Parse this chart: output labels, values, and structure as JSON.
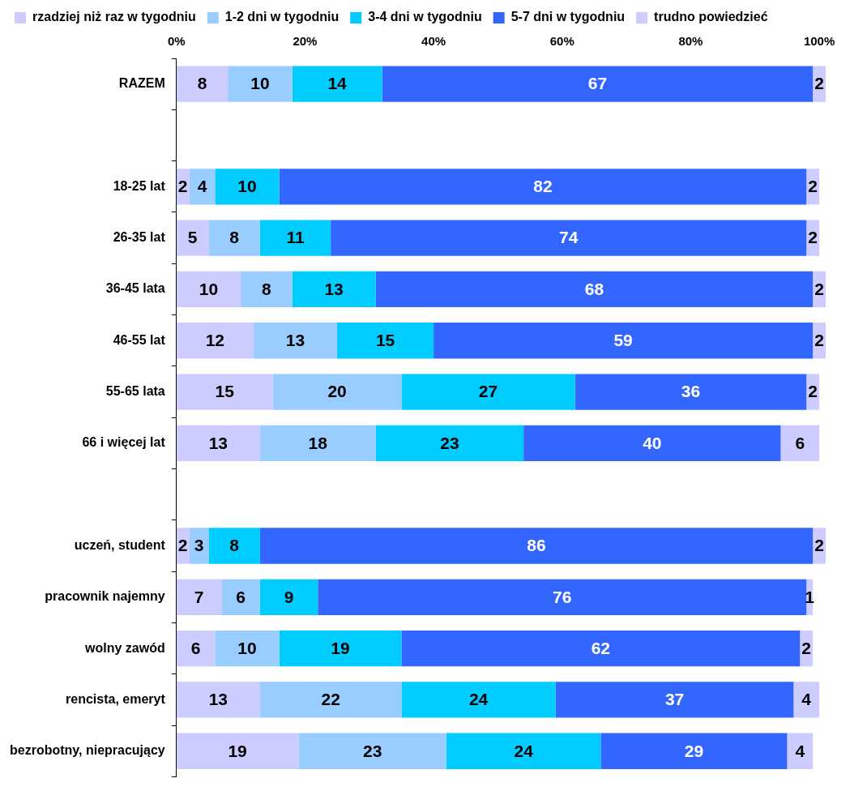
{
  "chart_data": {
    "type": "bar",
    "orientation": "horizontal",
    "stacked": true,
    "data_labels": true,
    "grid": false,
    "legend": "top",
    "categories": [
      "RAZEM",
      null,
      "18-25 lat",
      "26-35 lat",
      "36-45 lata",
      "46-55 lat",
      "55-65 lata",
      "66 i więcej lat",
      null,
      "uczeń, student",
      "pracownik najemny",
      "wolny zawód",
      "rencista, emeryt",
      "bezrobotny, niepracujący"
    ],
    "xlim": [
      0,
      101
    ],
    "xticks": [
      {
        "value": 0,
        "label": "0%"
      },
      {
        "value": 20,
        "label": "20%"
      },
      {
        "value": 40,
        "label": "40%"
      },
      {
        "value": 60,
        "label": "60%"
      },
      {
        "value": 80,
        "label": "80%"
      },
      {
        "value": 100,
        "label": "100%"
      }
    ],
    "series": [
      {
        "name": "rzadziej niż raz w tygodniu",
        "color": "#ccccff",
        "values": [
          8,
          null,
          2,
          5,
          10,
          12,
          15,
          13,
          null,
          2,
          7,
          6,
          13,
          19
        ]
      },
      {
        "name": "1-2 dni w tygodniu",
        "color": "#99ccff",
        "values": [
          10,
          null,
          4,
          8,
          8,
          13,
          20,
          18,
          null,
          3,
          6,
          10,
          22,
          23
        ]
      },
      {
        "name": "3-4 dni w tygodniu",
        "color": "#00ccff",
        "values": [
          14,
          null,
          10,
          11,
          13,
          15,
          27,
          23,
          null,
          8,
          9,
          19,
          24,
          24
        ]
      },
      {
        "name": "5-7 dni w tygodniu",
        "color": "#3366ff",
        "values": [
          67,
          null,
          82,
          74,
          68,
          59,
          36,
          40,
          null,
          86,
          76,
          62,
          37,
          29
        ]
      },
      {
        "name": "trudno powiedzieć",
        "color": "#ccccff",
        "values": [
          2,
          null,
          2,
          2,
          2,
          2,
          2,
          6,
          null,
          2,
          1,
          2,
          4,
          4
        ]
      }
    ]
  }
}
